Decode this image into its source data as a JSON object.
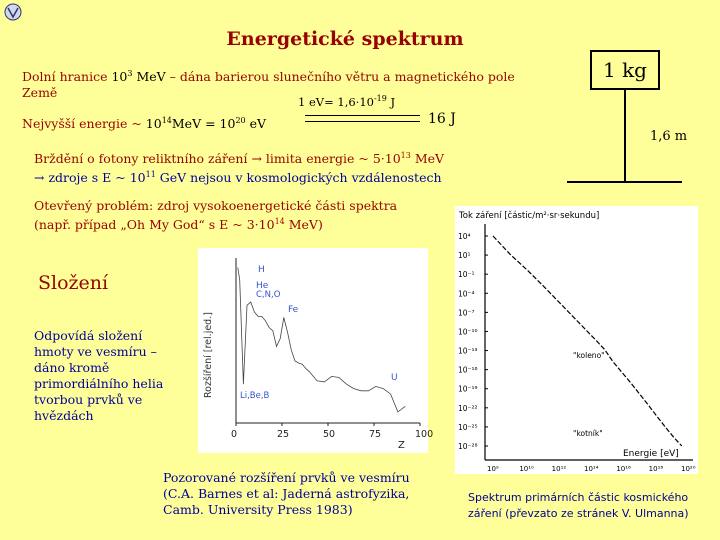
{
  "title": "Energetické spektrum",
  "lower_limit": {
    "prefix": "Dolní hranice",
    "base": "10",
    "exp": "3",
    "unit": " MeV",
    "suffix": " – dána barierou slunečního větru a magnetického pole",
    "line2": "Země"
  },
  "conversion": {
    "text": "1 eV= 1,6·10",
    "exp": "-19",
    "unit": " J"
  },
  "upper_limit": {
    "prefix": "Nejvyšší energie ~ ",
    "b1": "10",
    "e1": "14",
    "mid": "MeV = ",
    "b2": "10",
    "e2": "20",
    "unit": " eV",
    "joule": "16 J"
  },
  "kg_label": "1 kg",
  "height_label": "1,6 m",
  "braking": {
    "line1_a": "Brždění o fotony reliktního záření → limita energie  ~ 5·10",
    "line1_exp": "13",
    "line1_b": " MeV",
    "line2_a": "→ zdroje s E ~ 10",
    "line2_exp": "11",
    "line2_b": " GeV nejsou v kosmologických vzdálenostech"
  },
  "open_problem": {
    "line1": "Otevřený problém: zdroj vysokoenergetické části spektra",
    "line2_a": "(např. případ „Oh My God“ s E ~ 3·10",
    "line2_exp": "14",
    "line2_b": " MeV)",
    "line2_c": ")"
  },
  "composition": {
    "heading": "Složení",
    "text": [
      "Odpovídá složení",
      "hmoty ve vesmíru –",
      "dáno kromě",
      "primordiálního helia",
      "tvorbou prvků ve",
      "hvězdách"
    ]
  },
  "abundance_caption": [
    "Pozorované rozšíření prvků ve vesmíru",
    "(C.A. Barnes et al: Jaderná astrofyzika,",
    "Camb. University Press 1983)"
  ],
  "spectrum_caption": [
    "Spektrum primárních částic kosmického",
    "záření (převzato ze stránek V. Ulmanna)"
  ],
  "chart_data": [
    {
      "type": "line",
      "ylabel": "Rozšíření [rel.jed.]",
      "xlabel": "Z",
      "x_ticks": [
        "0",
        "25",
        "50",
        "75",
        "100"
      ],
      "xlim": [
        0,
        100
      ],
      "y_scale": "log",
      "element_labels": [
        "H",
        "He",
        "C,N,O",
        "Fe",
        "Li,Be,B",
        "U"
      ],
      "x": [
        1,
        2,
        4,
        6,
        8,
        10,
        12,
        14,
        16,
        18,
        20,
        22,
        24,
        26,
        28,
        30,
        32,
        34,
        36,
        38,
        40,
        44,
        48,
        52,
        56,
        60,
        64,
        68,
        72,
        76,
        80,
        84,
        88,
        92
      ],
      "values_log": [
        12,
        10.9,
        1.5,
        8.6,
        8.9,
        8.0,
        7.6,
        7.6,
        7.2,
        6.6,
        6.3,
        4.9,
        5.6,
        7.5,
        6.2,
        4.6,
        3.6,
        3.4,
        3.3,
        2.9,
        2.6,
        1.8,
        1.7,
        2.2,
        2.1,
        1.5,
        1.1,
        0.9,
        0.9,
        1.3,
        1.1,
        0.6,
        -1,
        -0.5
      ]
    },
    {
      "type": "line",
      "title": "Tok záření [částic/m²·sr·sekundu]",
      "xlabel": "Energie [eV]",
      "y_scale": "log",
      "x_scale": "log",
      "y_tick_labels": [
        "10⁴",
        "10¹",
        "10⁻¹",
        "10⁻⁴",
        "10⁻⁷",
        "10⁻¹⁰",
        "10⁻¹³",
        "10⁻¹⁶",
        "10⁻¹⁹",
        "10⁻²²",
        "10⁻²⁵",
        "10⁻²⁸"
      ],
      "x_tick_labels": [
        "10⁹",
        "10¹⁰",
        "10¹²",
        "10¹⁴",
        "10¹⁶",
        "10¹⁸",
        "10²⁰"
      ],
      "annotations": [
        "\"koleno\"",
        "\"kotník\""
      ],
      "log_x": [
        9,
        10,
        11,
        12,
        13,
        14,
        15,
        15.5,
        16,
        17,
        18,
        18.5,
        19,
        19.5,
        20
      ],
      "log_y": [
        4,
        1.2,
        -1.2,
        -3.8,
        -6.5,
        -9.2,
        -11.9,
        -13.3,
        -15.2,
        -18.3,
        -21.6,
        -23.3,
        -25,
        -26.6,
        -28
      ]
    }
  ]
}
